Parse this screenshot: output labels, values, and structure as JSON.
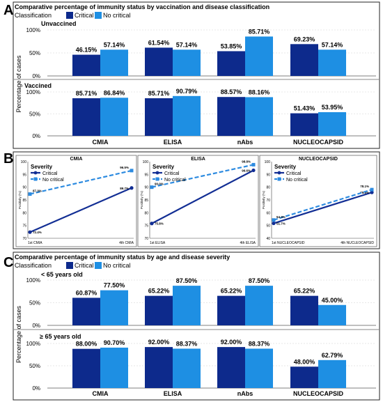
{
  "colors": {
    "critical": "#0d2a8c",
    "no_critical": "#1e8fe3",
    "frame": "#222222",
    "grid": "#cfcfcf",
    "panelB_critical": "#122e94",
    "panelB_no_critical": "#2d8be0"
  },
  "panel_letters": {
    "a": "A",
    "b": "B",
    "c": "C"
  },
  "panelA": {
    "title": "Comparative percentage of immunity status by vaccination and disease classification",
    "legend_title": "Classification",
    "legend": [
      "Critical",
      "No critical"
    ],
    "ylabel": "Percentage of cases",
    "yticks": [
      "0%",
      "50%",
      "100%"
    ]
  },
  "panelB": {
    "ylabel": "Positivity (%)",
    "legend_title": "Severity",
    "legend": [
      "Critical",
      "No critical"
    ]
  },
  "panelC": {
    "title": "Comparative percentage of immunity status by age and disease severity",
    "legend_title": "Classification",
    "legend": [
      "Critical",
      "No critical"
    ],
    "ylabel": "Percentage of cases",
    "yticks": [
      "0%",
      "50%",
      "100%"
    ]
  },
  "chart_data": [
    {
      "type": "bar",
      "panel": "A",
      "title": "Comparative percentage of immunity status by vaccination and disease classification",
      "ylabel": "Percentage of cases",
      "ylim": [
        0,
        100
      ],
      "categories": [
        "CMIA",
        "ELISA",
        "nAbs",
        "NUCLEOCAPSID"
      ],
      "facets": [
        {
          "label": "Unvaccined",
          "series": [
            {
              "name": "Critical",
              "values": [
                46.15,
                61.54,
                53.85,
                69.23
              ],
              "labels": [
                "46.15%",
                "61.54%",
                "53.85%",
                "69.23%"
              ]
            },
            {
              "name": "No critical",
              "values": [
                57.14,
                57.14,
                85.71,
                57.14
              ],
              "labels": [
                "57.14%",
                "57.14%",
                "85.71%",
                "57.14%"
              ]
            }
          ]
        },
        {
          "label": "Vaccined",
          "series": [
            {
              "name": "Critical",
              "values": [
                85.71,
                85.71,
                88.57,
                51.43
              ],
              "labels": [
                "85.71%",
                "85.71%",
                "88.57%",
                "51.43%"
              ]
            },
            {
              "name": "No critical",
              "values": [
                86.84,
                90.79,
                88.16,
                53.95
              ],
              "labels": [
                "86.84%",
                "90.79%",
                "88.16%",
                "53.95%"
              ]
            }
          ]
        }
      ]
    },
    {
      "type": "line",
      "panel": "B",
      "subplots": [
        {
          "title": "CMIA",
          "x": [
            "1st CMIA",
            "4th CMIA"
          ],
          "ylim": [
            70,
            100
          ],
          "yticks": [
            "70",
            "75",
            "80",
            "85",
            "90",
            "95",
            "100"
          ],
          "series": [
            {
              "name": "Critical",
              "values": [
                72.4,
                89.7
              ],
              "labels": [
                "72.4%",
                "89.7%"
              ]
            },
            {
              "name": "No critical",
              "values": [
                87.3,
                96.5
              ],
              "labels": [
                "87.3%",
                "96.5%"
              ]
            }
          ]
        },
        {
          "title": "ELISA",
          "x": [
            "1st ELISA",
            "4th ELISA"
          ],
          "ylim": [
            70,
            100
          ],
          "yticks": [
            "70",
            "75",
            "80",
            "85",
            "90",
            "95",
            "100"
          ],
          "series": [
            {
              "name": "Critical",
              "values": [
                75.8,
                96.6
              ],
              "labels": [
                "75.8%",
                "96.6%"
              ]
            },
            {
              "name": "No critical",
              "values": [
                90.0,
                98.8
              ],
              "labels": [
                "90.0%",
                "98.8%"
              ]
            }
          ]
        },
        {
          "title": "NUCLEOCAPSID",
          "x": [
            "1st NUCLEOCAPSID",
            "4th NUCLEOCAPSID"
          ],
          "ylim": [
            40,
            100
          ],
          "yticks": [
            "40",
            "50",
            "60",
            "70",
            "80",
            "90",
            "100"
          ],
          "series": [
            {
              "name": "Critical",
              "values": [
                51.7,
                75.9
              ],
              "labels": [
                "51.7%",
                "75.9%"
              ]
            },
            {
              "name": "No critical",
              "values": [
                54.3,
                78.1
              ],
              "labels": [
                "54.3%",
                "78.1%"
              ]
            }
          ]
        }
      ]
    },
    {
      "type": "bar",
      "panel": "C",
      "title": "Comparative percentage of immunity status by age and disease severity",
      "ylabel": "Percentage of cases",
      "ylim": [
        0,
        100
      ],
      "categories": [
        "CMIA",
        "ELISA",
        "nAbs",
        "NUCLEOCAPSID"
      ],
      "facets": [
        {
          "label": "< 65 years old",
          "series": [
            {
              "name": "Critical",
              "values": [
                60.87,
                65.22,
                65.22,
                65.22
              ],
              "labels": [
                "60.87%",
                "65.22%",
                "65.22%",
                "65.22%"
              ]
            },
            {
              "name": "No critical",
              "values": [
                77.5,
                87.5,
                87.5,
                45.0
              ],
              "labels": [
                "77.50%",
                "87.50%",
                "87.50%",
                "45.00%"
              ]
            }
          ]
        },
        {
          "label": "≥ 65 years old",
          "series": [
            {
              "name": "Critical",
              "values": [
                88.0,
                92.0,
                92.0,
                48.0
              ],
              "labels": [
                "88.00%",
                "92.00%",
                "92.00%",
                "48.00%"
              ]
            },
            {
              "name": "No critical",
              "values": [
                90.7,
                88.37,
                88.37,
                62.79
              ],
              "labels": [
                "90.70%",
                "88.37%",
                "88.37%",
                "62.79%"
              ]
            }
          ]
        }
      ]
    }
  ]
}
